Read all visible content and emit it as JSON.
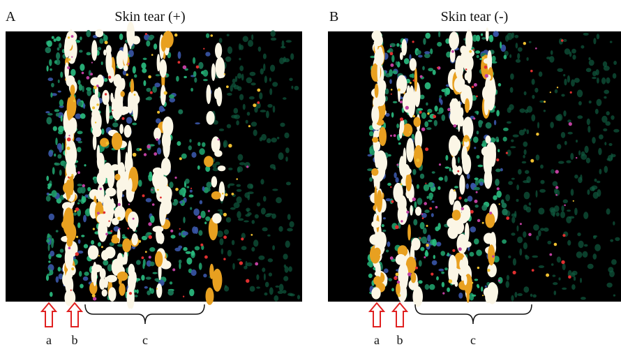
{
  "panels": [
    {
      "letter": "A",
      "title": "Skin tear (+)",
      "markers": [
        "a",
        "b",
        "c"
      ]
    },
    {
      "letter": "B",
      "title": "Skin tear (-)",
      "markers": [
        "a",
        "b",
        "c"
      ]
    }
  ]
}
